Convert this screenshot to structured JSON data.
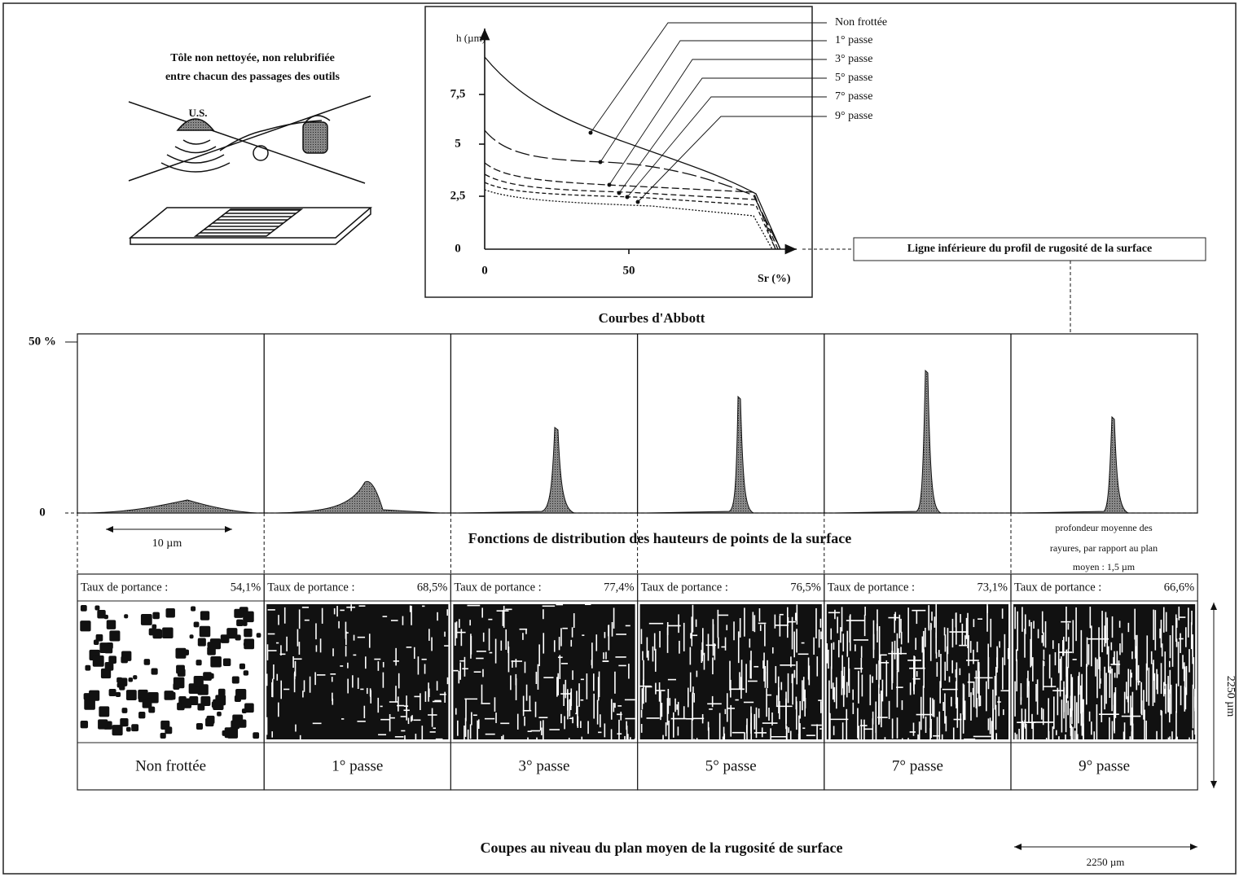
{
  "setup": {
    "caption": [
      "Tôle non nettoyée, non relubrifiée",
      "entre chacun des passages des outils"
    ],
    "probe_label": "U.S."
  },
  "abbott": {
    "title": "Courbes d'Abbott",
    "y_label": "h (µm)",
    "x_label": "Sr (%)",
    "y_ticks": [
      "0",
      "2,5",
      "5",
      "7,5"
    ],
    "x_ticks": [
      "0",
      "50"
    ],
    "legend": [
      "Non frottée",
      "1° passe",
      "3° passe",
      "5° passe",
      "7° passe",
      "9° passe"
    ],
    "annotation": "Ligne inférieure du profil de rugosité de la surface"
  },
  "distribution": {
    "title": "Fonctions de distribution des hauteurs de points de la surface",
    "y_ticks": [
      "50 %",
      "0"
    ],
    "scale": "10 µm",
    "note": [
      "profondeur moyenne des",
      "rayures, par rapport au plan",
      "moyen : 1,5 µm"
    ]
  },
  "sections": {
    "title": "Coupes au niveau du plan moyen de la rugosité de surface",
    "label": "Taux de portance :",
    "panels": [
      {
        "name": "Non frottée",
        "portance": "54,1%"
      },
      {
        "name": "1° passe",
        "portance": "68,5%"
      },
      {
        "name": "3° passe",
        "portance": "77,4%"
      },
      {
        "name": "5° passe",
        "portance": "76,5%"
      },
      {
        "name": "7° passe",
        "portance": "73,1%"
      },
      {
        "name": "9° passe",
        "portance": "66,6%"
      }
    ],
    "scale_vertical": "2250 µm",
    "scale_horizontal": "2250 µm"
  }
}
